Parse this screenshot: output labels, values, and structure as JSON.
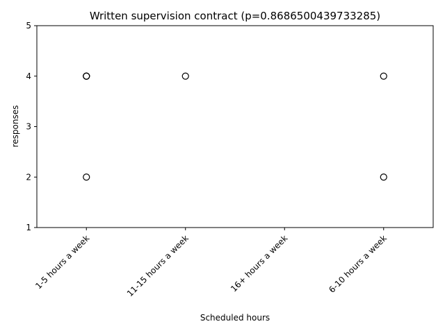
{
  "chart_data": {
    "type": "boxplot",
    "title": "Written supervision contract (p=0.8686500439733285)",
    "xlabel": "Scheduled hours",
    "ylabel": "responses",
    "categories": [
      "1-5 hours a week",
      "11-15 hours a week",
      "16+ hours a week",
      "6-10 hours a week"
    ],
    "ylim": [
      1,
      5
    ],
    "yticks": [
      1,
      2,
      3,
      4,
      5
    ],
    "grid": false,
    "medians": [
      5,
      5,
      5,
      5
    ],
    "outliers": [
      {
        "category": "1-5 hours a week",
        "values": [
          4,
          4,
          4,
          2
        ]
      },
      {
        "category": "11-15 hours a week",
        "values": [
          4
        ]
      },
      {
        "category": "16+ hours a week",
        "values": []
      },
      {
        "category": "6-10 hours a week",
        "values": [
          4,
          2
        ]
      }
    ],
    "colors": {
      "axis": "#000000",
      "marker_edge": "#000000",
      "median_line": "#000000"
    }
  }
}
